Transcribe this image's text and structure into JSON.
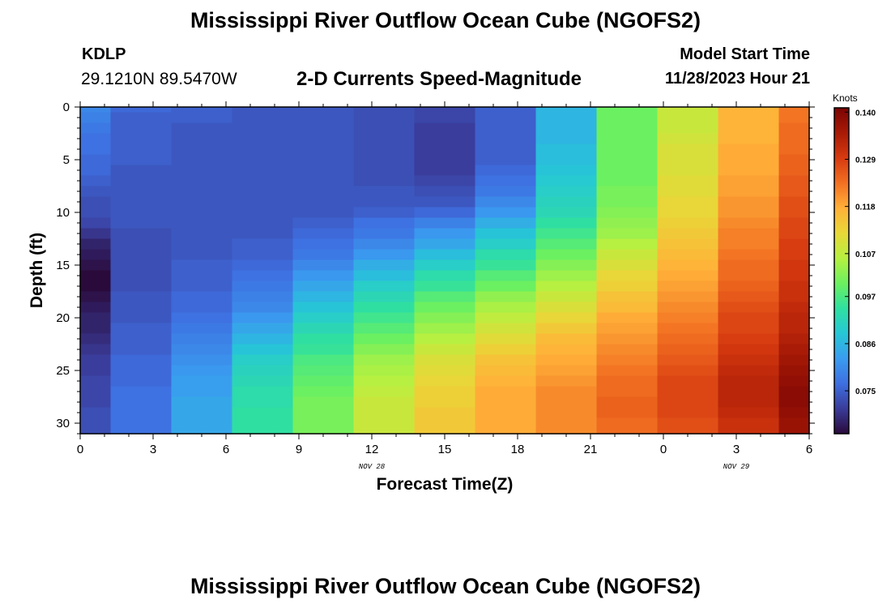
{
  "header": {
    "title": "Mississippi River Outflow Ocean Cube (NGOFS2)",
    "station_id": "KDLP",
    "coordinates": "29.1210N  89.5470W",
    "subtitle": "2-D Currents Speed-Magnitude",
    "model_start_label": "Model Start Time",
    "model_start_value": "11/28/2023 Hour 21"
  },
  "footer": {
    "title": "Mississippi River Outflow Ocean Cube (NGOFS2)"
  },
  "chart_data": {
    "type": "heatmap",
    "title": "2-D Currents Speed-Magnitude",
    "xlabel": "Forecast Time(Z)",
    "ylabel": "Depth (ft)",
    "x_ticks": [
      "0",
      "3",
      "6",
      "9",
      "12",
      "15",
      "18",
      "21",
      "0",
      "3",
      "6"
    ],
    "x_range_hours": [
      0,
      30
    ],
    "date_labels": [
      {
        "text": "NOV 28",
        "at_hour": 12
      },
      {
        "text": "NOV 29",
        "at_hour": 27
      }
    ],
    "y_ticks": [
      "0",
      "5",
      "10",
      "15",
      "20",
      "25",
      "30"
    ],
    "ylim": [
      0,
      31
    ],
    "colorbar": {
      "label": "Knots",
      "ticks": [
        "0.140",
        "0.129",
        "0.118",
        "0.107",
        "0.097",
        "0.086",
        "0.075"
      ],
      "range": [
        0.065,
        0.141
      ],
      "colors": [
        "#2a0a3a",
        "#3a3c9a",
        "#3e6fe0",
        "#3a9cf0",
        "#26c7d6",
        "#2fe0a0",
        "#6cf060",
        "#b6f040",
        "#e8d838",
        "#ffb038",
        "#f27022",
        "#d63a10",
        "#a81a06",
        "#7a0404"
      ]
    },
    "time_hours": [
      0,
      2.5,
      5,
      7.5,
      10,
      12.5,
      15,
      17.5,
      20,
      22.5,
      25,
      27.5,
      30
    ],
    "depth_ft": [
      0,
      1,
      2,
      3,
      4,
      5,
      6,
      7,
      8,
      9,
      10,
      11,
      12,
      13,
      14,
      15,
      16,
      17,
      18,
      19,
      20,
      21,
      22,
      23,
      24,
      25,
      26,
      27,
      28,
      29,
      30
    ],
    "values_knots": [
      [
        0.08,
        0.076,
        0.075,
        0.074,
        0.074,
        0.073,
        0.072,
        0.075,
        0.086,
        0.1,
        0.108,
        0.117,
        0.123
      ],
      [
        0.079,
        0.075,
        0.075,
        0.074,
        0.074,
        0.073,
        0.072,
        0.075,
        0.086,
        0.1,
        0.108,
        0.117,
        0.123
      ],
      [
        0.078,
        0.075,
        0.074,
        0.074,
        0.074,
        0.073,
        0.071,
        0.075,
        0.086,
        0.1,
        0.108,
        0.117,
        0.124
      ],
      [
        0.077,
        0.075,
        0.074,
        0.074,
        0.074,
        0.073,
        0.071,
        0.075,
        0.086,
        0.1,
        0.109,
        0.117,
        0.124
      ],
      [
        0.077,
        0.075,
        0.074,
        0.074,
        0.074,
        0.073,
        0.071,
        0.075,
        0.087,
        0.1,
        0.11,
        0.118,
        0.124
      ],
      [
        0.076,
        0.075,
        0.074,
        0.074,
        0.074,
        0.073,
        0.071,
        0.075,
        0.087,
        0.1,
        0.11,
        0.118,
        0.125
      ],
      [
        0.076,
        0.074,
        0.074,
        0.074,
        0.074,
        0.073,
        0.071,
        0.076,
        0.088,
        0.1,
        0.11,
        0.118,
        0.125
      ],
      [
        0.075,
        0.074,
        0.074,
        0.074,
        0.074,
        0.073,
        0.072,
        0.077,
        0.089,
        0.1,
        0.111,
        0.119,
        0.126
      ],
      [
        0.074,
        0.074,
        0.074,
        0.074,
        0.074,
        0.074,
        0.073,
        0.078,
        0.09,
        0.101,
        0.111,
        0.119,
        0.126
      ],
      [
        0.073,
        0.074,
        0.074,
        0.074,
        0.074,
        0.074,
        0.074,
        0.08,
        0.091,
        0.101,
        0.112,
        0.12,
        0.127
      ],
      [
        0.073,
        0.074,
        0.074,
        0.074,
        0.074,
        0.075,
        0.076,
        0.082,
        0.092,
        0.102,
        0.112,
        0.12,
        0.127
      ],
      [
        0.072,
        0.074,
        0.074,
        0.074,
        0.075,
        0.077,
        0.079,
        0.085,
        0.094,
        0.103,
        0.113,
        0.121,
        0.128
      ],
      [
        0.07,
        0.073,
        0.074,
        0.074,
        0.076,
        0.078,
        0.082,
        0.088,
        0.096,
        0.104,
        0.114,
        0.122,
        0.128
      ],
      [
        0.068,
        0.073,
        0.074,
        0.075,
        0.077,
        0.08,
        0.084,
        0.09,
        0.098,
        0.106,
        0.115,
        0.122,
        0.129
      ],
      [
        0.067,
        0.073,
        0.074,
        0.075,
        0.078,
        0.082,
        0.087,
        0.093,
        0.1,
        0.108,
        0.116,
        0.123,
        0.129
      ],
      [
        0.066,
        0.073,
        0.075,
        0.076,
        0.08,
        0.085,
        0.09,
        0.095,
        0.102,
        0.11,
        0.117,
        0.124,
        0.13
      ],
      [
        0.065,
        0.073,
        0.075,
        0.077,
        0.082,
        0.087,
        0.093,
        0.098,
        0.104,
        0.112,
        0.118,
        0.124,
        0.13
      ],
      [
        0.065,
        0.073,
        0.075,
        0.078,
        0.084,
        0.09,
        0.095,
        0.1,
        0.106,
        0.113,
        0.119,
        0.125,
        0.131
      ],
      [
        0.066,
        0.074,
        0.076,
        0.079,
        0.086,
        0.092,
        0.098,
        0.103,
        0.108,
        0.115,
        0.12,
        0.126,
        0.131
      ],
      [
        0.067,
        0.074,
        0.076,
        0.08,
        0.088,
        0.094,
        0.1,
        0.105,
        0.11,
        0.116,
        0.121,
        0.127,
        0.132
      ],
      [
        0.068,
        0.074,
        0.077,
        0.082,
        0.09,
        0.096,
        0.102,
        0.107,
        0.112,
        0.118,
        0.122,
        0.128,
        0.133
      ],
      [
        0.068,
        0.075,
        0.078,
        0.084,
        0.092,
        0.098,
        0.104,
        0.109,
        0.114,
        0.119,
        0.123,
        0.128,
        0.133
      ],
      [
        0.069,
        0.075,
        0.079,
        0.086,
        0.094,
        0.1,
        0.106,
        0.111,
        0.116,
        0.12,
        0.124,
        0.129,
        0.134
      ],
      [
        0.07,
        0.075,
        0.08,
        0.088,
        0.095,
        0.102,
        0.108,
        0.113,
        0.117,
        0.121,
        0.125,
        0.13,
        0.135
      ],
      [
        0.071,
        0.076,
        0.081,
        0.09,
        0.097,
        0.104,
        0.11,
        0.115,
        0.118,
        0.122,
        0.126,
        0.131,
        0.136
      ],
      [
        0.071,
        0.076,
        0.082,
        0.091,
        0.098,
        0.105,
        0.111,
        0.116,
        0.119,
        0.123,
        0.127,
        0.132,
        0.137
      ],
      [
        0.072,
        0.076,
        0.083,
        0.092,
        0.099,
        0.106,
        0.112,
        0.117,
        0.12,
        0.124,
        0.128,
        0.133,
        0.138
      ],
      [
        0.072,
        0.077,
        0.083,
        0.093,
        0.1,
        0.107,
        0.113,
        0.118,
        0.121,
        0.124,
        0.128,
        0.133,
        0.139
      ],
      [
        0.072,
        0.077,
        0.084,
        0.093,
        0.101,
        0.108,
        0.113,
        0.118,
        0.121,
        0.125,
        0.128,
        0.133,
        0.139
      ],
      [
        0.073,
        0.077,
        0.084,
        0.094,
        0.101,
        0.108,
        0.114,
        0.118,
        0.121,
        0.125,
        0.128,
        0.132,
        0.138
      ],
      [
        0.073,
        0.077,
        0.084,
        0.094,
        0.101,
        0.108,
        0.114,
        0.118,
        0.121,
        0.124,
        0.127,
        0.131,
        0.137
      ]
    ]
  }
}
